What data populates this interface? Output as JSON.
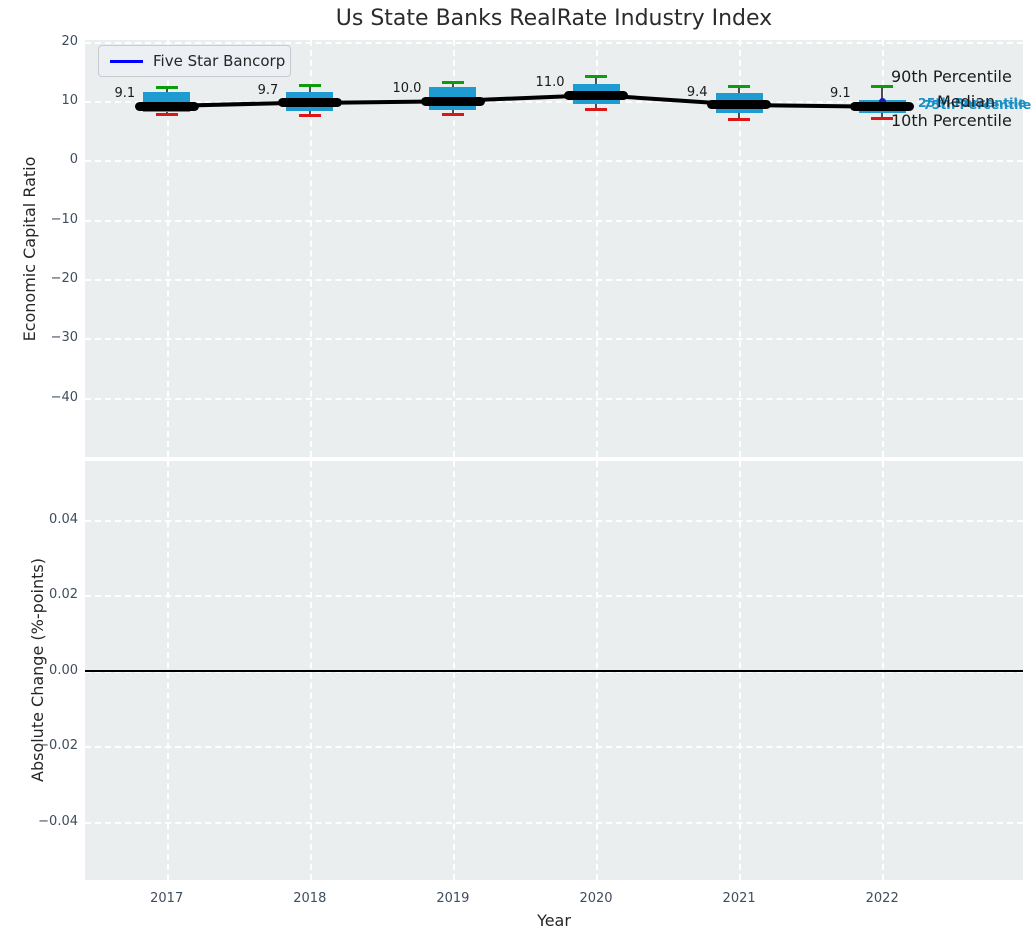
{
  "title": "Us State Banks RealRate Industry Index",
  "legend": {
    "label": "Five Star Bancorp",
    "line_color": "#0000ff"
  },
  "annotations": {
    "p90": "90th Percentile",
    "median": "Median",
    "p75": "75th Percentile",
    "p25": "25th Percentile",
    "p10": "10th Percentile"
  },
  "top_axes": {
    "ylabel": "Economic Capital Ratio",
    "yticks": [
      "20",
      "10",
      "0",
      "−10",
      "−20",
      "−30",
      "−40"
    ],
    "ytick_values": [
      20,
      10,
      0,
      -10,
      -20,
      -30,
      -40
    ]
  },
  "bottom_axes": {
    "ylabel": "Absolute Change (%-points)",
    "yticks": [
      "0.04",
      "0.02",
      "0.00",
      "−0.02",
      "−0.04"
    ],
    "ytick_values": [
      0.04,
      0.02,
      0,
      -0.02,
      -0.04
    ],
    "xlabel": "Year"
  },
  "colors": {
    "axes_bg": "#eaeeee",
    "grid": "#ffffff",
    "box_fill": "#1e9cd2",
    "cap_90": "#0c9c0c",
    "cap_10": "#dc1616",
    "whisker": "#4d4d4d",
    "series_line": "#000000",
    "legend_line": "#0000ff",
    "annotation_blue": "#1a8fc6",
    "zero_line": "#000000"
  },
  "chart_data": {
    "type": "boxplot-with-line",
    "title": "Us State Banks RealRate Industry Index",
    "xlabel": "Year",
    "categories": [
      "2017",
      "2018",
      "2019",
      "2020",
      "2021",
      "2022"
    ],
    "series": [
      {
        "name": "Five Star Bancorp",
        "values": [
          9.1,
          9.7,
          10.0,
          11.0,
          9.4,
          9.1
        ]
      }
    ],
    "point_labels": [
      "9.1",
      "9.7",
      "10.0",
      "11.0",
      "9.4",
      "9.1"
    ],
    "boxes": [
      {
        "year": "2017",
        "p10": 7.7,
        "p25": 8.1,
        "median": 9.1,
        "p75": 11.5,
        "p90": 12.3
      },
      {
        "year": "2018",
        "p10": 7.6,
        "p25": 8.3,
        "median": 9.7,
        "p75": 11.6,
        "p90": 12.6
      },
      {
        "year": "2019",
        "p10": 7.7,
        "p25": 8.5,
        "median": 10.0,
        "p75": 12.4,
        "p90": 13.2
      },
      {
        "year": "2020",
        "p10": 8.6,
        "p25": 9.5,
        "median": 11.0,
        "p75": 12.8,
        "p90": 14.2
      },
      {
        "year": "2021",
        "p10": 6.8,
        "p25": 7.9,
        "median": 9.4,
        "p75": 11.4,
        "p90": 12.4
      },
      {
        "year": "2022",
        "p10": 7.1,
        "p25": 7.9,
        "median": 9.1,
        "p75": 10.2,
        "p90": 12.4
      }
    ],
    "top_axis": {
      "ylabel": "Economic Capital Ratio",
      "ylim": [
        -50,
        20.3
      ],
      "grid": true
    },
    "bottom_axis": {
      "ylabel": "Absolute Change (%-points)",
      "ylim": [
        -0.055,
        0.055
      ],
      "zero_line": 0.0,
      "grid": true,
      "empty": true
    },
    "legend_position": "upper left"
  }
}
